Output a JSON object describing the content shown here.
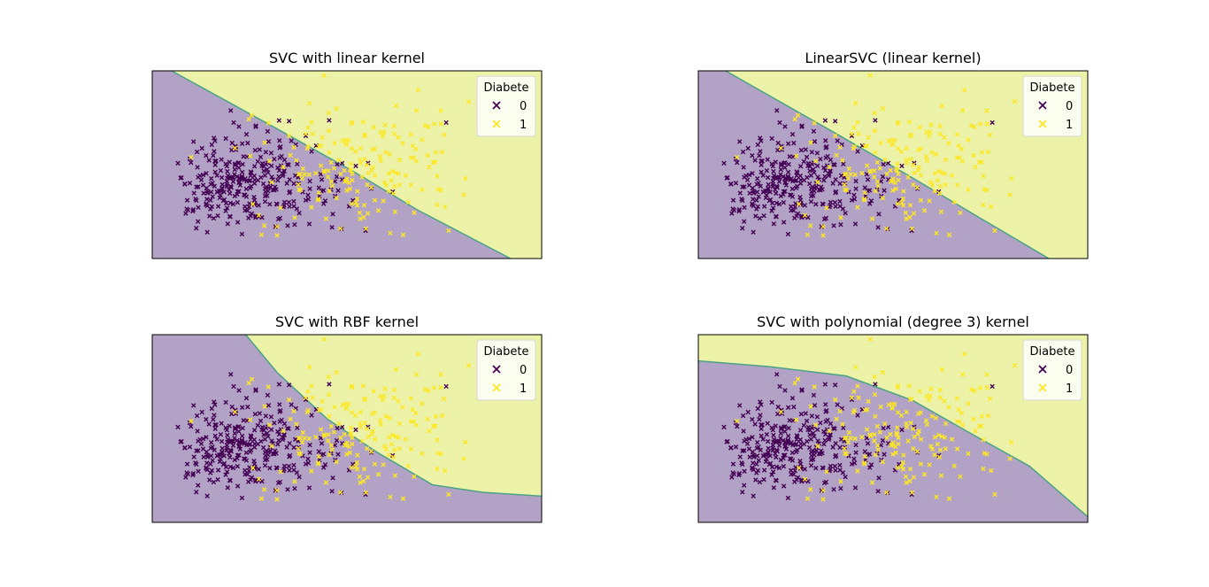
{
  "figure": {
    "background": "#ffffff"
  },
  "colors": {
    "class0": "#440154",
    "class1": "#fde725",
    "region0": "#b2a2c5",
    "region1": "#ecf3a8",
    "boundary": "#4aa384"
  },
  "chart_data": [
    {
      "type": "scatter",
      "title": "SVC with linear kernel",
      "legend": {
        "title": "Diabete",
        "placement": "top-right",
        "entries": [
          "0",
          "1"
        ]
      },
      "axes_visible": false,
      "xlim": [
        0,
        1
      ],
      "ylim": [
        0,
        1
      ],
      "decision_boundary": [
        [
          0.05,
          1.0
        ],
        [
          0.33,
          0.68
        ],
        [
          0.52,
          0.46
        ],
        [
          0.68,
          0.26
        ],
        [
          0.92,
          0.0
        ]
      ],
      "boundary_shape": "diagonal",
      "series": [
        {
          "name": "0"
        },
        {
          "name": "1"
        }
      ]
    },
    {
      "type": "scatter",
      "title": "LinearSVC (linear kernel)",
      "legend": {
        "title": "Diabete",
        "placement": "top-right",
        "entries": [
          "0",
          "1"
        ]
      },
      "axes_visible": false,
      "xlim": [
        0,
        1
      ],
      "ylim": [
        0,
        1
      ],
      "decision_boundary": [
        [
          0.07,
          1.0
        ],
        [
          0.35,
          0.67
        ],
        [
          0.55,
          0.43
        ],
        [
          0.72,
          0.22
        ],
        [
          0.9,
          0.0
        ]
      ],
      "boundary_shape": "diagonal",
      "series": [
        {
          "name": "0"
        },
        {
          "name": "1"
        }
      ]
    },
    {
      "type": "scatter",
      "title": "SVC with RBF kernel",
      "legend": {
        "title": "Diabete",
        "placement": "top-right",
        "entries": [
          "0",
          "1"
        ]
      },
      "axes_visible": false,
      "xlim": [
        0,
        1
      ],
      "ylim": [
        0,
        1
      ],
      "decision_boundary": [
        [
          0.24,
          1.0
        ],
        [
          0.32,
          0.8
        ],
        [
          0.45,
          0.55
        ],
        [
          0.58,
          0.37
        ],
        [
          0.72,
          0.2
        ],
        [
          0.85,
          0.16
        ],
        [
          1.0,
          0.14
        ]
      ],
      "boundary_shape": "diagonal",
      "series": [
        {
          "name": "0"
        },
        {
          "name": "1"
        }
      ]
    },
    {
      "type": "scatter",
      "title": "SVC with polynomial (degree 3) kernel",
      "legend": {
        "title": "Diabete",
        "placement": "top-right",
        "entries": [
          "0",
          "1"
        ]
      },
      "axes_visible": false,
      "xlim": [
        0,
        1
      ],
      "ylim": [
        0,
        1
      ],
      "decision_boundary": [
        [
          0.0,
          0.86
        ],
        [
          0.18,
          0.83
        ],
        [
          0.38,
          0.78
        ],
        [
          0.55,
          0.65
        ],
        [
          0.72,
          0.45
        ],
        [
          0.85,
          0.3
        ],
        [
          1.0,
          0.03
        ]
      ],
      "boundary_shape": "curved",
      "series": [
        {
          "name": "0"
        },
        {
          "name": "1"
        }
      ]
    }
  ]
}
